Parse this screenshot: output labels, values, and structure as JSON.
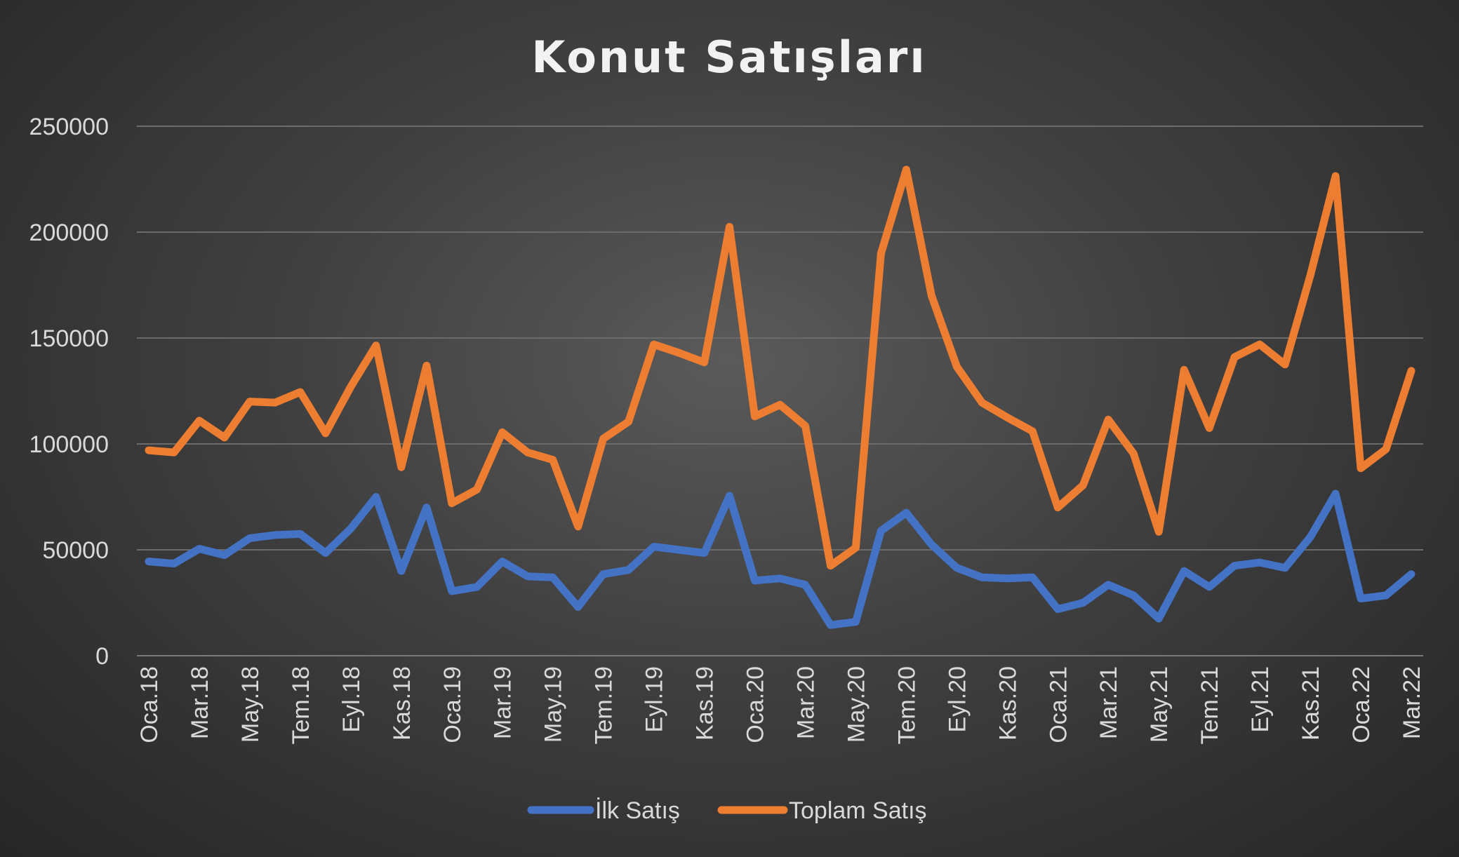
{
  "chart_data": {
    "type": "line",
    "title": "Konut Satışları",
    "xlabel": "",
    "ylabel": "",
    "ylim": [
      0,
      250000
    ],
    "yticks": [
      "0",
      "50000",
      "100000",
      "150000",
      "200000",
      "250000"
    ],
    "x": [
      "Oca.18",
      "Şub.18",
      "Mar.18",
      "Nis.18",
      "May.18",
      "Haz.18",
      "Tem.18",
      "Ağu.18",
      "Eyl.18",
      "Eki.18",
      "Kas.18",
      "Ara.18",
      "Oca.19",
      "Şub.19",
      "Mar.19",
      "Nis.19",
      "May.19",
      "Haz.19",
      "Tem.19",
      "Ağu.19",
      "Eyl.19",
      "Eki.19",
      "Kas.19",
      "Ara.19",
      "Oca.20",
      "Şub.20",
      "Mar.20",
      "Nis.20",
      "May.20",
      "Haz.20",
      "Tem.20",
      "Ağu.20",
      "Eyl.20",
      "Eki.20",
      "Kas.20",
      "Ara.20",
      "Oca.21",
      "Şub.21",
      "Mar.21",
      "Nis.21",
      "May.21",
      "Haz.21",
      "Tem.21",
      "Ağu.21",
      "Eyl.21",
      "Eki.21",
      "Kas.21",
      "Ara.21",
      "Oca.22",
      "Şub.22",
      "Mar.22"
    ],
    "x_tick_labels": [
      "Oca.18",
      "Mar.18",
      "May.18",
      "Tem.18",
      "Eyl.18",
      "Kas.18",
      "Oca.19",
      "Mar.19",
      "May.19",
      "Tem.19",
      "Eyl.19",
      "Kas.19",
      "Oca.20",
      "Mar.20",
      "May.20",
      "Tem.20",
      "Eyl.20",
      "Kas.20",
      "Oca.21",
      "Mar.21",
      "May.21",
      "Tem.21",
      "Eyl.21",
      "Kas.21",
      "Oca.22",
      "Mar.22"
    ],
    "series": [
      {
        "name": "İlk Satış",
        "color": "#4472c4",
        "values": [
          44500,
          43500,
          50500,
          47500,
          55500,
          57000,
          57500,
          48500,
          60000,
          75000,
          40000,
          70000,
          30500,
          32500,
          44500,
          37500,
          37000,
          23000,
          38500,
          40500,
          51500,
          50000,
          48500,
          75500,
          35500,
          36500,
          33500,
          14500,
          16000,
          59000,
          67500,
          52500,
          41500,
          37000,
          36500,
          37000,
          22000,
          25000,
          33500,
          28500,
          17500,
          40000,
          32500,
          42500,
          44000,
          41500,
          56000,
          76500,
          27000,
          28500,
          38500
        ]
      },
      {
        "name": "Toplam Satış",
        "color": "#ed7d31",
        "values": [
          97000,
          96000,
          111000,
          103000,
          120000,
          119500,
          124500,
          105000,
          127000,
          146500,
          89000,
          137000,
          72000,
          78500,
          105500,
          96000,
          92500,
          61000,
          102500,
          110500,
          147000,
          143000,
          138500,
          202500,
          113000,
          118500,
          108500,
          42500,
          51000,
          190000,
          229500,
          170000,
          136500,
          119500,
          112500,
          106000,
          70000,
          80500,
          111500,
          95500,
          58500,
          135000,
          107500,
          141000,
          147000,
          137500,
          179500,
          226500,
          88500,
          97500,
          134500
        ]
      }
    ],
    "grid": true,
    "legend": "bottom"
  }
}
